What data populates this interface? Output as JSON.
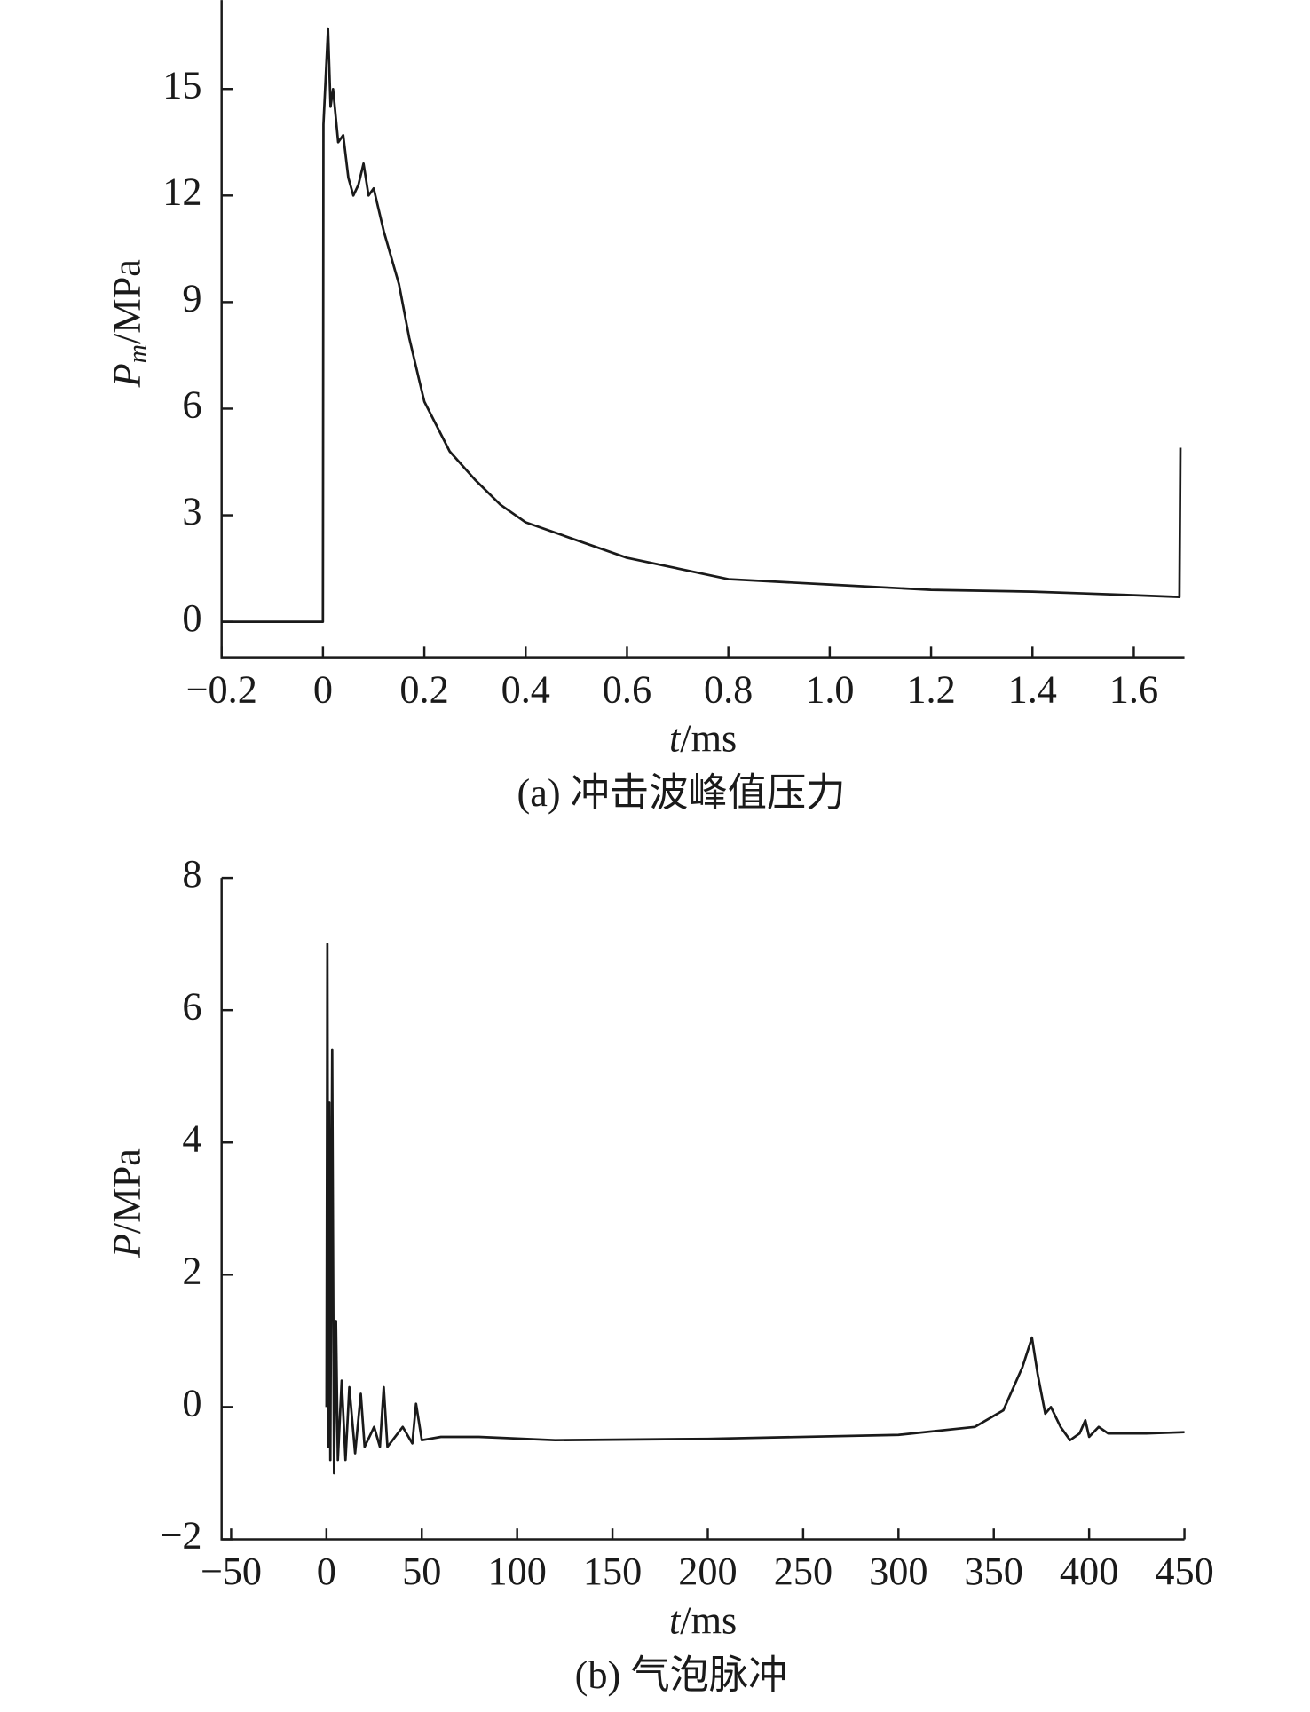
{
  "chart_data": [
    {
      "type": "line",
      "caption": "(a) 冲击波峰值压力",
      "xlabel": {
        "symbol": "t",
        "unit": "/ms"
      },
      "ylabel": {
        "symbol": "P",
        "subscript": "m",
        "unit": "/MPa"
      },
      "color": "#1a1a1a",
      "x": [
        -0.2,
        0,
        0.001,
        0.01,
        0.015,
        0.02,
        0.03,
        0.04,
        0.05,
        0.06,
        0.07,
        0.08,
        0.09,
        0.1,
        0.12,
        0.15,
        0.17,
        0.19,
        0.2,
        0.25,
        0.3,
        0.35,
        0.4,
        0.5,
        0.6,
        0.7,
        0.8,
        1.0,
        1.2,
        1.4,
        1.5,
        1.6,
        1.69,
        1.692
      ],
      "values": [
        0,
        0,
        14,
        16.7,
        14.5,
        15,
        13.5,
        13.7,
        12.5,
        12,
        12.3,
        12.9,
        12,
        12.2,
        11,
        9.5,
        8,
        6.8,
        6.2,
        4.8,
        4,
        3.3,
        2.8,
        2.3,
        1.8,
        1.5,
        1.2,
        1.05,
        0.9,
        0.85,
        0.8,
        0.75,
        0.7,
        4.9
      ],
      "xlim": [
        -0.2,
        1.7
      ],
      "ylim": [
        -1,
        17.5
      ],
      "xticks": [
        {
          "value": -0.2,
          "label": "−0.2"
        },
        0,
        0.2,
        0.4,
        0.6,
        0.8,
        {
          "value": 1,
          "label": "1.0"
        },
        1.2,
        1.4,
        1.6
      ],
      "yticks": [
        0,
        3,
        6,
        9,
        12,
        15
      ]
    },
    {
      "type": "line",
      "caption": "(b) 气泡脉冲",
      "xlabel": {
        "symbol": "t",
        "unit": "/ms"
      },
      "ylabel": {
        "symbol": "P",
        "unit": "/MPa"
      },
      "color": "#1a1a1a",
      "x": [
        0,
        0.5,
        1,
        1.5,
        2,
        3,
        4,
        5,
        6,
        8,
        10,
        12,
        15,
        18,
        20,
        25,
        28,
        30,
        32,
        40,
        45,
        47,
        50,
        60,
        80,
        120,
        200,
        300,
        340,
        355,
        365,
        370,
        373,
        377,
        380,
        385,
        390,
        395,
        398,
        400,
        405,
        410,
        430,
        450
      ],
      "values": [
        0,
        7,
        -0.6,
        4.6,
        -0.8,
        5.4,
        -1,
        1.3,
        -0.8,
        0.4,
        -0.8,
        0.3,
        -0.7,
        0.2,
        -0.6,
        -0.3,
        -0.6,
        0.3,
        -0.6,
        -0.3,
        -0.55,
        0.05,
        -0.5,
        -0.45,
        -0.45,
        -0.5,
        -0.48,
        -0.42,
        -0.3,
        -0.05,
        0.6,
        1.05,
        0.5,
        -0.1,
        0,
        -0.3,
        -0.5,
        -0.4,
        -0.2,
        -0.45,
        -0.3,
        -0.4,
        -0.4,
        -0.38
      ],
      "xlim": [
        -55,
        450
      ],
      "ylim": [
        -2,
        8
      ],
      "xticks": [
        {
          "value": -50,
          "label": "−50"
        },
        0,
        50,
        100,
        150,
        200,
        250,
        300,
        350,
        400,
        450
      ],
      "yticks": [
        {
          "value": -2,
          "label": "−2"
        },
        0,
        2,
        4,
        6,
        8
      ]
    }
  ]
}
